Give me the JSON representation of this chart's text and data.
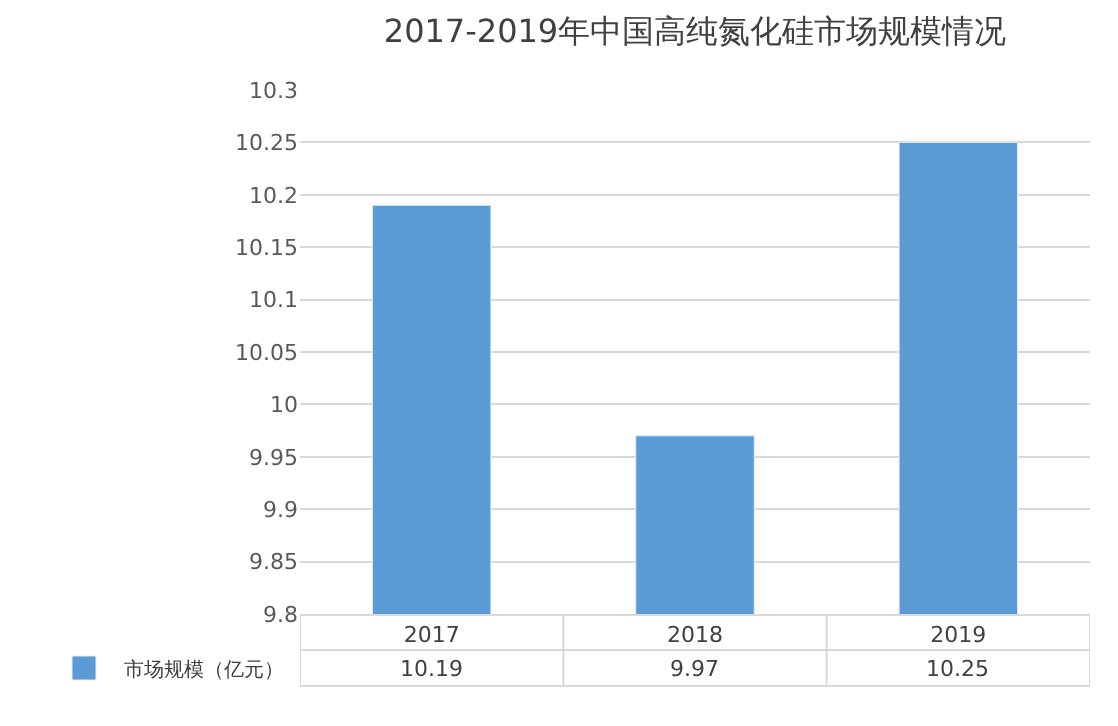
{
  "chart_data": {
    "type": "bar",
    "title": "2017-2019年中国高纯氮化硅市场规模情况",
    "categories": [
      "2017",
      "2018",
      "2019"
    ],
    "series": [
      {
        "name": "市场规模（亿元）",
        "color": "#5b9bd5",
        "values": [
          10.19,
          9.97,
          10.25
        ]
      }
    ],
    "ylim": [
      9.8,
      10.3
    ],
    "yticks": [
      9.8,
      9.85,
      9.9,
      9.95,
      10,
      10.05,
      10.1,
      10.15,
      10.2,
      10.25,
      10.3
    ],
    "grid": "y",
    "legend": "bottom",
    "data_labels": true
  }
}
